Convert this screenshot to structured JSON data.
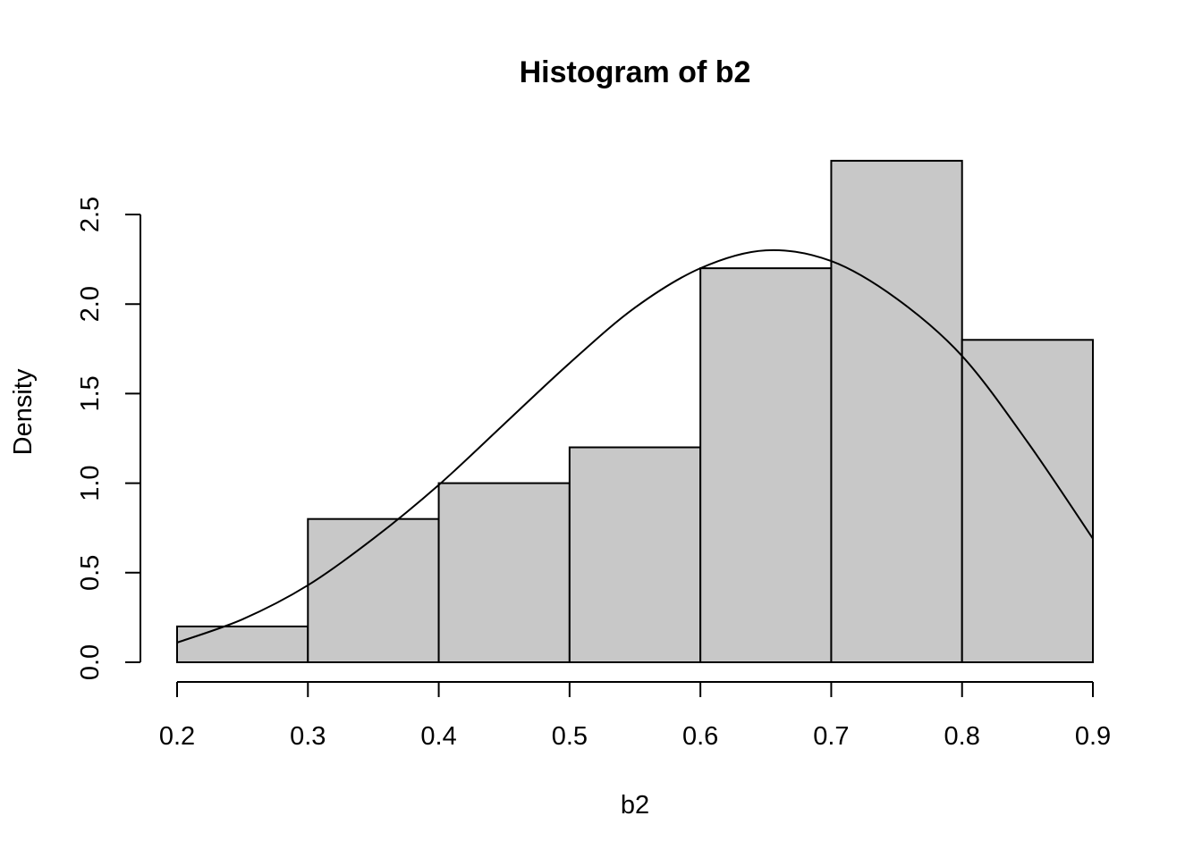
{
  "chart_data": {
    "type": "bar",
    "title": "Histogram of b2",
    "xlabel": "b2",
    "ylabel": "Density",
    "xlim": [
      0.2,
      0.9
    ],
    "ylim": [
      0.0,
      2.8
    ],
    "bins": [
      {
        "start": 0.2,
        "end": 0.3,
        "density": 0.2
      },
      {
        "start": 0.3,
        "end": 0.4,
        "density": 0.8
      },
      {
        "start": 0.4,
        "end": 0.5,
        "density": 1.0
      },
      {
        "start": 0.5,
        "end": 0.6,
        "density": 1.2
      },
      {
        "start": 0.6,
        "end": 0.7,
        "density": 2.2
      },
      {
        "start": 0.7,
        "end": 0.8,
        "density": 2.8
      },
      {
        "start": 0.8,
        "end": 0.9,
        "density": 1.8
      }
    ],
    "x_ticks": [
      "0.2",
      "0.3",
      "0.4",
      "0.5",
      "0.6",
      "0.7",
      "0.8",
      "0.9"
    ],
    "y_ticks": [
      "0.0",
      "0.5",
      "1.0",
      "1.5",
      "2.0",
      "2.5"
    ],
    "density_curve": {
      "x": [
        0.2,
        0.25,
        0.3,
        0.35,
        0.4,
        0.45,
        0.5,
        0.55,
        0.6,
        0.65,
        0.7,
        0.75,
        0.8,
        0.85,
        0.9
      ],
      "y": [
        0.11,
        0.24,
        0.43,
        0.69,
        0.99,
        1.33,
        1.67,
        1.98,
        2.2,
        2.3,
        2.24,
        2.03,
        1.71,
        1.23,
        0.69
      ]
    },
    "bar_color": "#C8C8C8",
    "grid": false
  }
}
